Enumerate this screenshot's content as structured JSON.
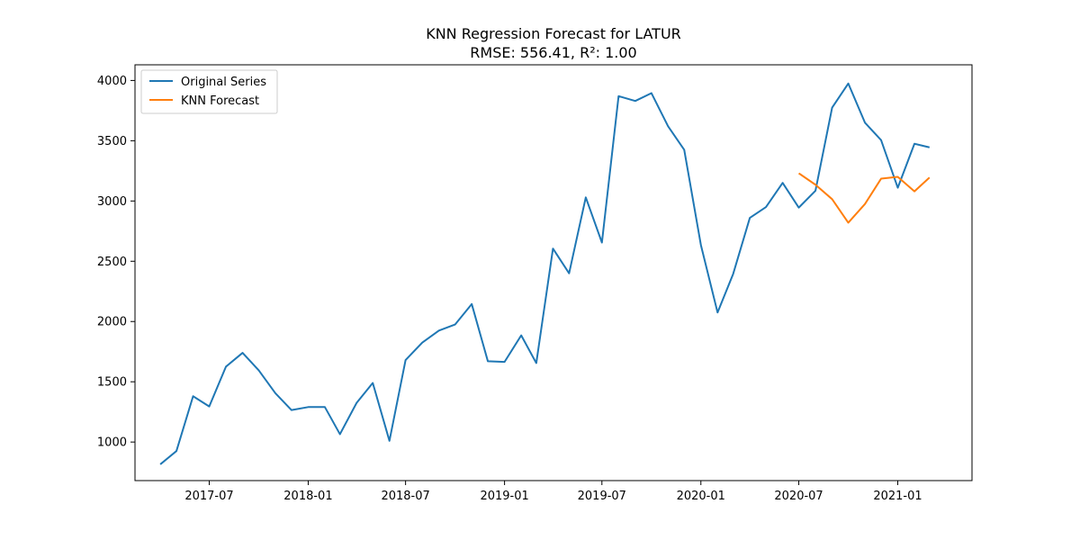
{
  "chart_data": {
    "type": "line",
    "title": "KNN Regression Forecast for LATUR",
    "subtitle": "RMSE: 556.41, R²: 1.00",
    "xlabel": "",
    "ylabel": "",
    "xlim": [
      "2017-02-13",
      "2021-05-19"
    ],
    "ylim": [
      680,
      4130
    ],
    "x_ticks": [
      "2017-07",
      "2018-01",
      "2018-07",
      "2019-01",
      "2019-07",
      "2020-01",
      "2020-07",
      "2021-01"
    ],
    "y_ticks": [
      1000,
      1500,
      2000,
      2500,
      3000,
      3500,
      4000
    ],
    "grid": false,
    "legend_position": "top-left",
    "series": [
      {
        "name": "Original Series",
        "color": "#1f77b4",
        "x": [
          "2017-04",
          "2017-05",
          "2017-06",
          "2017-07",
          "2017-08",
          "2017-09",
          "2017-10",
          "2017-11",
          "2017-12",
          "2018-01",
          "2018-02",
          "2018-03",
          "2018-04",
          "2018-05",
          "2018-06",
          "2018-07",
          "2018-08",
          "2018-09",
          "2018-10",
          "2018-11",
          "2018-12",
          "2019-01",
          "2019-02",
          "2019-03",
          "2019-04",
          "2019-05",
          "2019-06",
          "2019-07",
          "2019-08",
          "2019-09",
          "2019-10",
          "2019-11",
          "2019-12",
          "2020-01",
          "2020-02",
          "2020-03",
          "2020-04",
          "2020-05",
          "2020-06",
          "2020-07",
          "2020-08",
          "2020-09",
          "2020-10",
          "2020-11",
          "2020-12",
          "2021-01",
          "2021-02",
          "2021-03"
        ],
        "values": [
          815,
          925,
          1380,
          1295,
          1625,
          1740,
          1595,
          1405,
          1265,
          1290,
          1290,
          1065,
          1325,
          1490,
          1010,
          1680,
          1825,
          1925,
          1975,
          2145,
          1670,
          1665,
          1885,
          1655,
          2605,
          2400,
          3030,
          2655,
          3870,
          3830,
          3895,
          3620,
          3425,
          2635,
          2075,
          2395,
          2860,
          2950,
          3150,
          2945,
          3085,
          3775,
          3975,
          3650,
          3505,
          3110,
          3475,
          3445
        ]
      },
      {
        "name": "KNN Forecast",
        "color": "#ff7f0e",
        "x": [
          "2020-07",
          "2020-08",
          "2020-09",
          "2020-10",
          "2020-11",
          "2020-12",
          "2021-01",
          "2021-02",
          "2021-03"
        ],
        "values": [
          3230,
          3135,
          3015,
          2820,
          2975,
          3185,
          3200,
          3080,
          3195
        ]
      }
    ]
  }
}
